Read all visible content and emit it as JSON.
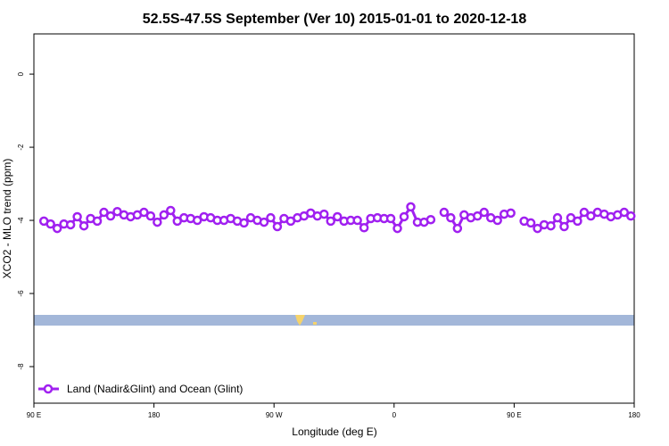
{
  "chart_data": {
    "type": "line",
    "title": "52.5S-47.5S September (Ver 10)   2015-01-01 to 2020-12-18",
    "x_label": "Longitude (deg E)",
    "y_label": "XCO2 - MLO trend (ppm)",
    "x": [
      97.5,
      102.5,
      107.5,
      112.5,
      117.5,
      122.5,
      127.5,
      132.5,
      137.5,
      142.5,
      147.5,
      152.5,
      157.5,
      162.5,
      167.5,
      172.5,
      177.5,
      182.5,
      187.5,
      192.5,
      197.5,
      202.5,
      207.5,
      212.5,
      217.5,
      222.5,
      227.5,
      232.5,
      237.5,
      242.5,
      247.5,
      252.5,
      257.5,
      262.5,
      267.5,
      272.5,
      277.5,
      282.5,
      287.5,
      292.5,
      297.5,
      302.5,
      307.5,
      312.5,
      317.5,
      322.5,
      327.5,
      332.5,
      337.5,
      342.5,
      347.5,
      352.5,
      357.5,
      362.5,
      367.5,
      372.5,
      377.5,
      382.5,
      387.5,
      392.5,
      397.5,
      402.5,
      407.5,
      412.5,
      417.5,
      422.5,
      427.5,
      432.5,
      437.5,
      442.5,
      447.5,
      452.5,
      457.5,
      462.5,
      467.5,
      472.5,
      477.5,
      482.5,
      487.5,
      492.5,
      497.5,
      502.5,
      507.5,
      512.5,
      517.5,
      522.5,
      527.5,
      532.5,
      537.5
    ],
    "series": [
      {
        "name": "Land (Nadir&Glint) and Ocean (Glint)",
        "color": "#a020f0",
        "values": [
          -4.02,
          -4.1,
          -4.22,
          -4.1,
          -4.12,
          -3.9,
          -4.15,
          -3.95,
          -4.02,
          -3.78,
          -3.88,
          -3.76,
          -3.85,
          -3.9,
          -3.85,
          -3.78,
          -3.88,
          -4.05,
          -3.85,
          -3.73,
          -4.02,
          -3.93,
          -3.95,
          -4.0,
          -3.9,
          -3.93,
          -4.0,
          -4.0,
          -3.95,
          -4.02,
          -4.07,
          -3.93,
          -4.0,
          -4.05,
          -3.93,
          -4.17,
          -3.95,
          -4.02,
          -3.93,
          -3.88,
          -3.8,
          -3.88,
          -3.83,
          -4.02,
          -3.9,
          -4.02,
          -4.0,
          -4.0,
          -4.2,
          -3.95,
          -3.93,
          -3.95,
          -3.95,
          -4.22,
          -3.9,
          -3.63,
          -4.05,
          -4.05,
          -3.98,
          null,
          -3.78,
          -3.93,
          -4.22,
          -3.85,
          -3.93,
          -3.88,
          -3.78,
          -3.93,
          -4.0,
          -3.83,
          -3.8,
          null,
          -4.02,
          -4.07,
          -4.22,
          -4.12,
          -4.15,
          -3.93,
          -4.17,
          -3.93,
          -4.02,
          -3.78,
          -3.88,
          -3.78,
          -3.83,
          -3.9,
          -3.85,
          -3.78,
          -3.88
        ]
      }
    ],
    "xlim": [
      90,
      540
    ],
    "xticks": [
      {
        "value": 90,
        "label": "90 E"
      },
      180,
      {
        "value": 270,
        "label": "90 W"
      },
      {
        "value": 360,
        "label": "0"
      },
      {
        "value": 450,
        "label": "90 E"
      },
      {
        "value": 540,
        "label": "180"
      }
    ],
    "ylim": [
      -9,
      1.1
    ],
    "yticks": [
      -8,
      -6,
      -4,
      -2,
      0
    ],
    "legend": "bottom-left"
  }
}
